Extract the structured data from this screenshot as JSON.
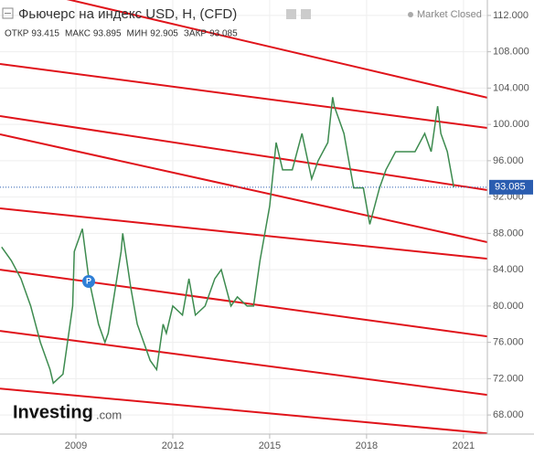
{
  "chart_data": {
    "type": "line",
    "title": "Фьючерс на индекс USD, H, (CFD)",
    "status": "Market Closed",
    "ohlc": [
      {
        "name": "ОТКР",
        "value": 93.415
      },
      {
        "name": "МАКС",
        "value": 93.895
      },
      {
        "name": "МИН",
        "value": 92.905
      },
      {
        "name": "ЗАКР",
        "value": 93.085
      }
    ],
    "last_price": 93.085,
    "logo": [
      "Investing",
      ".com"
    ],
    "series": [
      {
        "color": "#3d8b4f",
        "x": [
          2006.7,
          2007.0,
          2007.3,
          2007.6,
          2007.9,
          2008.2,
          2008.3,
          2008.6,
          2008.9,
          2008.95,
          2009.2,
          2009.4,
          2009.7,
          2009.9,
          2010.0,
          2010.4,
          2010.45,
          2010.7,
          2010.9,
          2011.3,
          2011.5,
          2011.7,
          2011.8,
          2012.0,
          2012.3,
          2012.5,
          2012.7,
          2013.0,
          2013.3,
          2013.5,
          2013.8,
          2014.0,
          2014.3,
          2014.5,
          2014.7,
          2015.0,
          2015.2,
          2015.4,
          2015.7,
          2016.0,
          2016.3,
          2016.5,
          2016.8,
          2016.95,
          2017.0,
          2017.3,
          2017.6,
          2017.9,
          2018.1,
          2018.4,
          2018.6,
          2018.9,
          2019.2,
          2019.5,
          2019.8,
          2020.0,
          2020.2,
          2020.3,
          2020.5,
          2020.7
        ],
        "values": [
          86.5,
          85,
          83,
          80,
          76,
          73,
          71.5,
          72.5,
          80,
          86,
          88.5,
          83,
          78,
          76,
          77,
          86,
          88,
          82,
          78,
          74,
          73,
          78,
          77,
          80,
          79,
          83,
          79,
          80,
          83,
          84,
          80,
          81,
          80,
          80,
          85,
          91,
          98,
          95,
          95,
          99,
          94,
          96,
          98,
          103,
          102,
          99,
          93,
          93,
          89,
          93,
          95,
          97,
          97,
          97,
          99,
          97,
          102,
          99,
          97,
          93.085
        ]
      }
    ],
    "trend_color": "#e0131a",
    "trend_lines": [
      {
        "x": [
          2006.65,
          2021.74
        ],
        "y": [
          115.52,
          102.94
        ]
      },
      {
        "x": [
          2006.65,
          2021.74
        ],
        "y": [
          106.66,
          99.61
        ]
      },
      {
        "x": [
          2006.65,
          2021.74
        ],
        "y": [
          100.92,
          92.77
        ]
      },
      {
        "x": [
          2006.65,
          2021.74
        ],
        "y": [
          98.91,
          87.03
        ]
      },
      {
        "x": [
          2006.65,
          2021.74
        ],
        "y": [
          90.75,
          85.21
        ]
      },
      {
        "x": [
          2006.65,
          2021.74
        ],
        "y": [
          84.0,
          76.65
        ]
      },
      {
        "x": [
          2006.65,
          2021.74
        ],
        "y": [
          77.26,
          70.21
        ]
      },
      {
        "x": [
          2006.65,
          2021.74
        ],
        "y": [
          70.91,
          65.97
        ]
      }
    ],
    "xlim": [
      2006.65,
      2021.74
    ],
    "xticks": [
      2009,
      2012,
      2015,
      2018,
      2021
    ],
    "ylim": [
      66.4,
      113.7
    ],
    "yticks": [
      {
        "value": 68,
        "label": "68.000"
      },
      {
        "value": 72,
        "label": "72.000"
      },
      {
        "value": 76,
        "label": "76.000"
      },
      {
        "value": 80,
        "label": "80.000"
      },
      {
        "value": 84,
        "label": "84.000"
      },
      {
        "value": 88,
        "label": "88.000"
      },
      {
        "value": 92,
        "label": "92.000"
      },
      {
        "value": 96,
        "label": "96.000"
      },
      {
        "value": 100,
        "label": "100.000"
      },
      {
        "value": 104,
        "label": "104.000"
      },
      {
        "value": 108,
        "label": "108.000"
      },
      {
        "value": 112,
        "label": "112.000"
      }
    ],
    "grid": true
  }
}
